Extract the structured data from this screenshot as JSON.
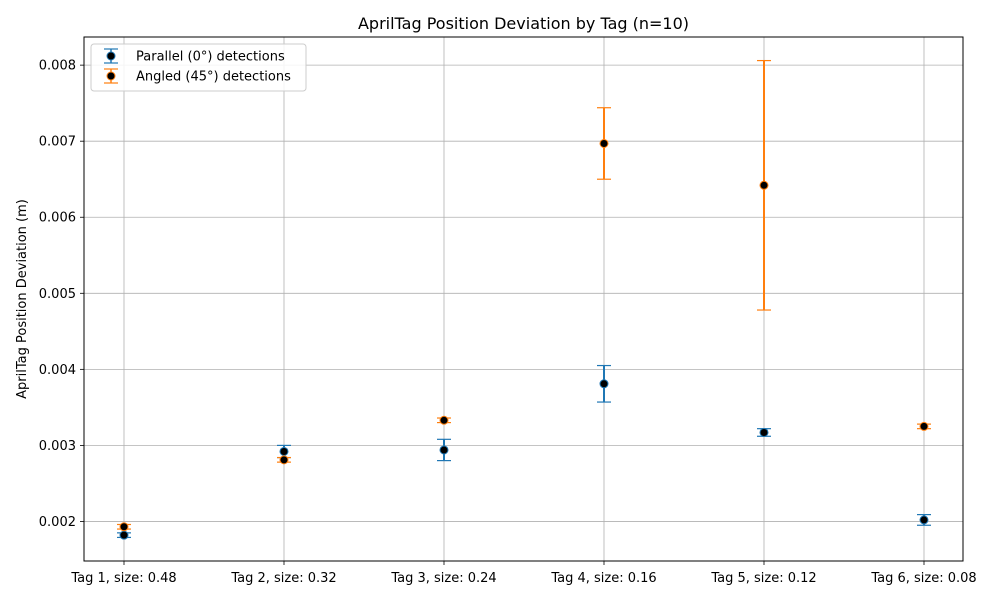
{
  "chart_data": {
    "type": "scatter",
    "title": "AprilTag Position Deviation by Tag (n=10)",
    "xlabel": "",
    "ylabel": "AprilTag Position Deviation (m)",
    "categories": [
      "Tag 1, size: 0.48",
      "Tag 2, size: 0.32",
      "Tag 3, size: 0.24",
      "Tag 4, size: 0.16",
      "Tag 5, size: 0.12",
      "Tag 6, size: 0.08"
    ],
    "ylim": [
      0.00148,
      0.00837
    ],
    "yticks": [
      0.002,
      0.003,
      0.004,
      0.005,
      0.006,
      0.007,
      0.008
    ],
    "ytick_labels": [
      "0.002",
      "0.003",
      "0.004",
      "0.005",
      "0.006",
      "0.007",
      "0.008"
    ],
    "grid": true,
    "legend_position": "top-left",
    "series": [
      {
        "name": "Parallel (0°) detections",
        "color": "#1f77b4",
        "values": [
          0.00182,
          0.00292,
          0.00294,
          0.00381,
          0.00317,
          0.00202
        ],
        "error": [
          3e-05,
          8e-05,
          0.00014,
          0.00024,
          5e-05,
          7e-05
        ]
      },
      {
        "name": "Angled (45°) detections",
        "color": "#ff7f0e",
        "values": [
          0.00193,
          0.00281,
          0.00333,
          0.00697,
          0.00642,
          0.00325
        ],
        "error": [
          3e-05,
          3e-05,
          3e-05,
          0.00047,
          0.00164,
          3e-05
        ]
      }
    ],
    "marker_color": "#000000"
  }
}
